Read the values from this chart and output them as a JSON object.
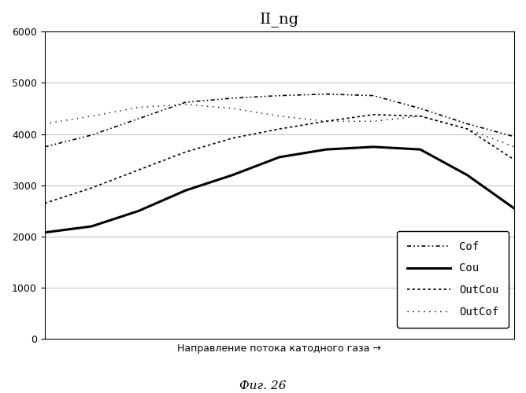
{
  "title": "II_ng",
  "xlabel": "Направление потока катодного газа →",
  "caption": "Фиг. 26",
  "ylim": [
    0,
    6000
  ],
  "yticks": [
    0,
    1000,
    2000,
    3000,
    4000,
    5000,
    6000
  ],
  "x": [
    0,
    1,
    2,
    3,
    4,
    5,
    6,
    7,
    8,
    9,
    10
  ],
  "Cof": [
    3750,
    3980,
    4300,
    4620,
    4700,
    4750,
    4780,
    4750,
    4500,
    4200,
    3950
  ],
  "Cou": [
    2080,
    2200,
    2500,
    2900,
    3200,
    3550,
    3700,
    3750,
    3700,
    3200,
    2550
  ],
  "OutCou": [
    2650,
    2950,
    3300,
    3650,
    3920,
    4100,
    4250,
    4380,
    4350,
    4100,
    3500
  ],
  "OutCof": [
    4200,
    4350,
    4520,
    4580,
    4500,
    4350,
    4250,
    4250,
    4350,
    4100,
    3750
  ],
  "linewidths": {
    "Cof": 1.2,
    "Cou": 2.2,
    "OutCou": 1.2,
    "OutCof": 1.0
  },
  "bg_color": "#ffffff",
  "grid_color": "#bbbbbb",
  "title_fontsize": 14,
  "tick_fontsize": 9,
  "xlabel_fontsize": 9,
  "legend_fontsize": 10
}
